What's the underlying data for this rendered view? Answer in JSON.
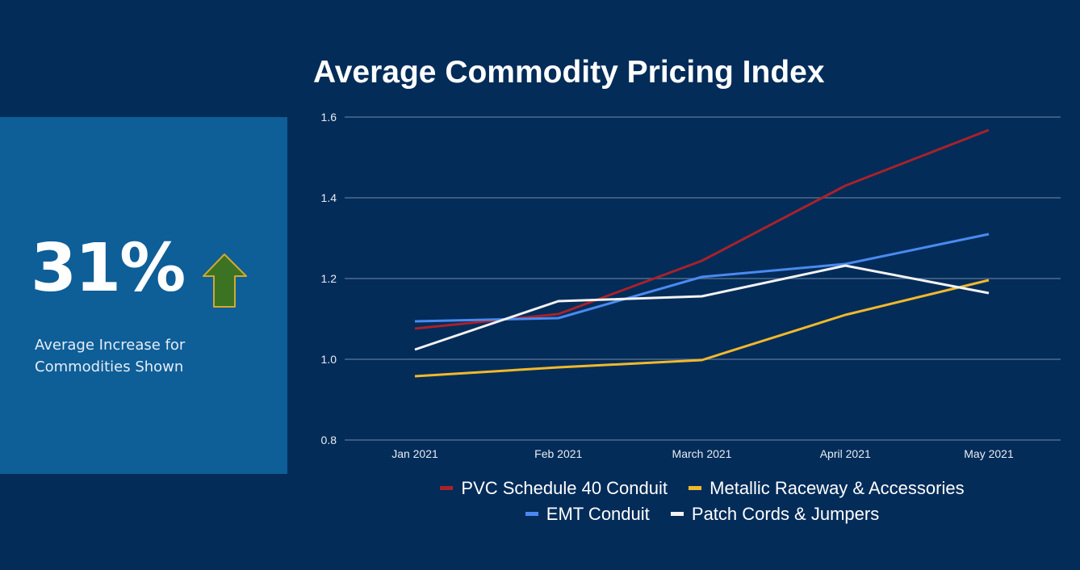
{
  "kpi": {
    "value": "31%",
    "caption_line1": "Average Increase for",
    "caption_line2": "Commodities Shown",
    "trend": "up",
    "arrow_fill": "#3b7322",
    "arrow_stroke": "#d4a92c"
  },
  "chart_data": {
    "type": "line",
    "title": "Average Commodity Pricing Index",
    "xlabel": "",
    "ylabel": "",
    "categories": [
      "Jan 2021",
      "Feb 2021",
      "March 2021",
      "April 2021",
      "May 2021"
    ],
    "ylim": [
      0.8,
      1.6
    ],
    "yticks": [
      "0.8",
      "1.0",
      "1.2",
      "1.4",
      "1.6"
    ],
    "ytick_values": [
      0.8,
      1.0,
      1.2,
      1.4,
      1.6
    ],
    "grid": true,
    "legend_position": "bottom",
    "series": [
      {
        "name": "PVC Schedule 40 Conduit",
        "color": "#a8222a",
        "values": [
          1.076,
          1.112,
          1.244,
          1.43,
          1.568
        ]
      },
      {
        "name": "Metallic Raceway & Accessories",
        "color": "#f1b92b",
        "values": [
          0.958,
          0.98,
          0.998,
          1.11,
          1.196
        ]
      },
      {
        "name": "EMT Conduit",
        "color": "#4a8af0",
        "values": [
          1.094,
          1.102,
          1.204,
          1.236,
          1.31
        ]
      },
      {
        "name": "Patch Cords & Jumpers",
        "color": "#f3f3f3",
        "values": [
          1.024,
          1.144,
          1.156,
          1.232,
          1.164
        ]
      }
    ]
  }
}
